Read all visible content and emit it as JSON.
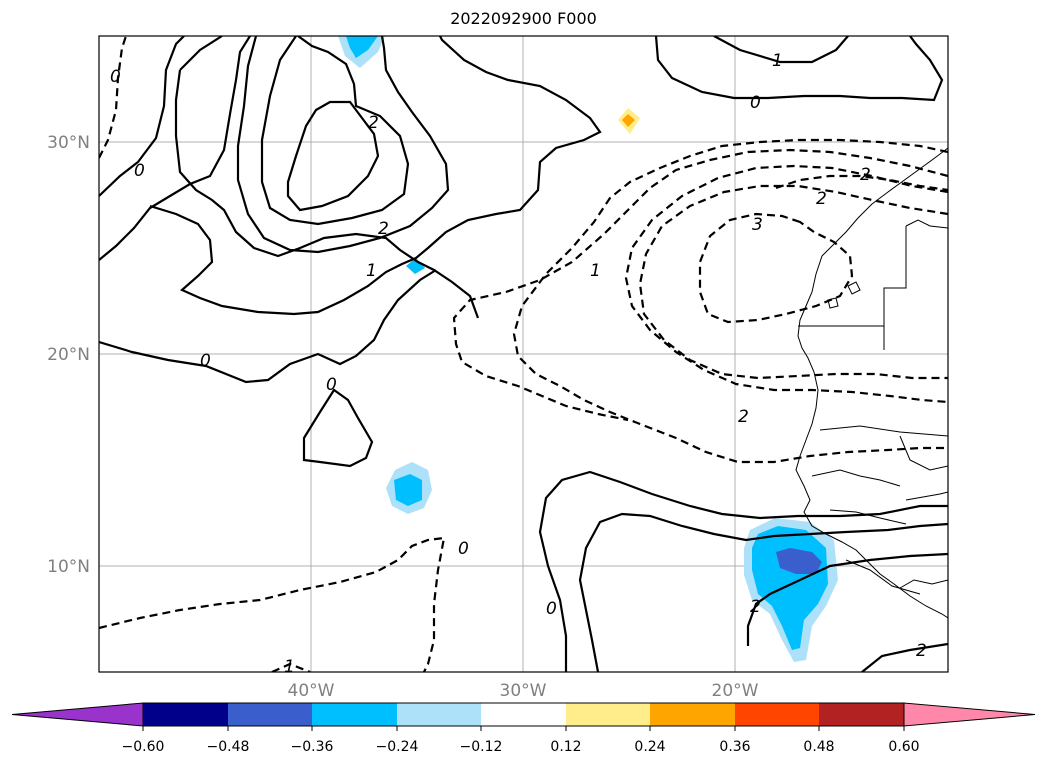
{
  "title": "2022092900 F000",
  "map": {
    "lat_labels": [
      "30°N",
      "20°N",
      "10°N"
    ],
    "lon_labels": [
      "40°W",
      "30°W",
      "20°W"
    ],
    "contour_labels": [
      "0",
      "0",
      "0",
      "0",
      "0",
      "0",
      "0",
      "1",
      "1",
      "1",
      "1",
      "2",
      "2",
      "2",
      "2",
      "2",
      "2",
      "3",
      "2"
    ],
    "colors": {
      "grid": "#b0b0b0",
      "contour": "#000000",
      "light_blue": "#ade1fa",
      "blue": "#00bfff",
      "mid_blue": "#3a5fcd",
      "yellow": "#ffec8b",
      "orange": "#ffa500"
    }
  },
  "colorbar": {
    "segments": [
      "#9933cc",
      "#00008b",
      "#3a5fcd",
      "#00bfff",
      "#ade1fa",
      "#ffffff",
      "#ffec8b",
      "#ffa500",
      "#ff4500",
      "#b22222",
      "#ff88aa"
    ],
    "extend_low_color": "#9933cc",
    "extend_high_color": "#ff88aa",
    "ticks": [
      "−0.60",
      "−0.48",
      "−0.36",
      "−0.24",
      "−0.12",
      "0.12",
      "0.24",
      "0.36",
      "0.48",
      "0.60"
    ]
  }
}
